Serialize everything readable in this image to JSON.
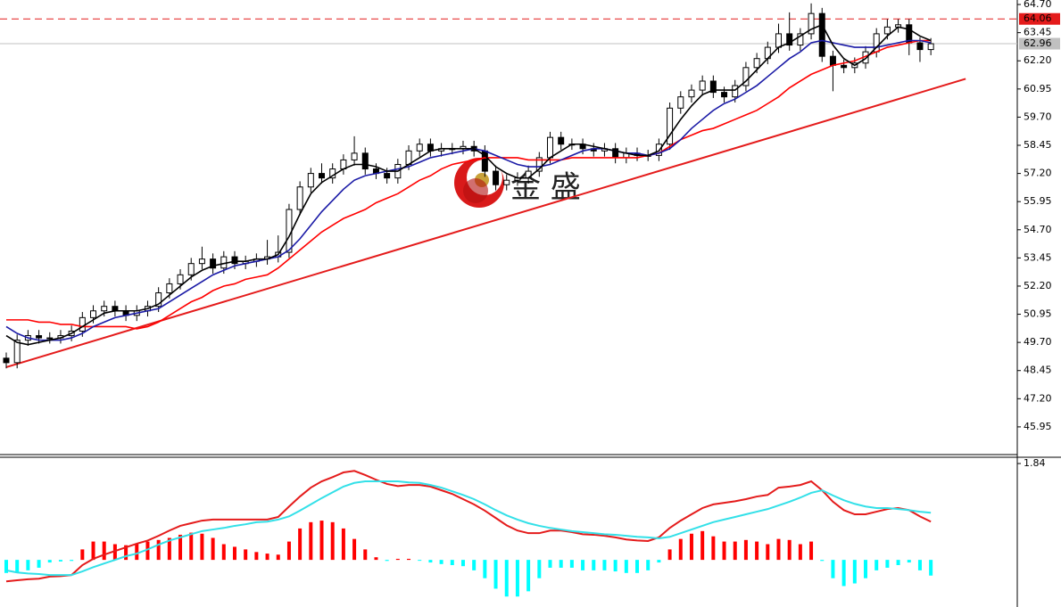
{
  "chart_data": [
    {
      "type": "candlestick",
      "watermark": "金 盛",
      "ylim": [
        44.72,
        64.9
      ],
      "yticks": [
        {
          "value": 64.7,
          "label": "64.70"
        },
        63.45,
        {
          "value": 62.2,
          "label": "62.20"
        },
        60.95,
        {
          "value": 59.7,
          "label": "59.70"
        },
        58.45,
        {
          "value": 57.2,
          "label": "57.20"
        },
        55.95,
        {
          "value": 54.7,
          "label": "54.70"
        },
        53.45,
        {
          "value": 52.2,
          "label": "52.20"
        },
        50.95,
        {
          "value": 49.7,
          "label": "49.70"
        },
        48.45,
        {
          "value": 47.2,
          "label": "47.20"
        },
        45.95
      ],
      "up_color": "#ffffff",
      "down_color": "#000000",
      "open": [
        49.0,
        48.8,
        49.8,
        50.0,
        49.9,
        49.9,
        50.0,
        50.2,
        50.8,
        51.1,
        51.3,
        51.1,
        50.9,
        51.1,
        51.3,
        51.9,
        52.3,
        52.7,
        53.2,
        53.4,
        53.0,
        53.5,
        53.2,
        53.3,
        53.4,
        53.5,
        53.7,
        55.6,
        56.6,
        57.2,
        57.0,
        57.4,
        57.8,
        58.1,
        57.4,
        57.2,
        57.0,
        57.6,
        58.2,
        58.5,
        58.2,
        58.3,
        58.3,
        58.4,
        58.2,
        57.3,
        56.7,
        56.9,
        57.0,
        57.3,
        57.9,
        58.8,
        58.5,
        58.5,
        58.3,
        58.2,
        58.3,
        57.9,
        58.1,
        58.0,
        58.0,
        58.5,
        60.1,
        60.6,
        60.9,
        61.3,
        60.8,
        60.6,
        61.1,
        61.9,
        62.3,
        62.8,
        63.4,
        62.9,
        63.4,
        64.3,
        62.4,
        62.0,
        61.9,
        62.1,
        62.6,
        63.4,
        63.7,
        63.8,
        63.0,
        62.7
      ],
      "high": [
        49.25,
        50.05,
        50.25,
        50.25,
        50.15,
        50.25,
        50.45,
        51.05,
        51.35,
        51.55,
        51.55,
        51.35,
        51.35,
        51.55,
        52.15,
        52.55,
        52.95,
        53.45,
        53.95,
        53.65,
        53.75,
        53.75,
        53.55,
        53.65,
        54.25,
        54.45,
        55.85,
        56.85,
        57.45,
        57.65,
        57.65,
        58.05,
        58.85,
        58.35,
        57.65,
        57.45,
        57.85,
        58.45,
        58.75,
        58.75,
        58.55,
        58.55,
        58.65,
        58.65,
        58.45,
        57.55,
        57.15,
        57.25,
        57.55,
        58.15,
        59.05,
        59.05,
        58.75,
        58.75,
        58.55,
        58.55,
        58.55,
        58.35,
        58.35,
        58.25,
        58.75,
        60.35,
        60.85,
        61.15,
        61.55,
        61.55,
        61.05,
        61.35,
        62.15,
        62.55,
        63.05,
        63.85,
        64.35,
        63.65,
        64.75,
        64.55,
        62.65,
        62.25,
        62.35,
        62.85,
        63.65,
        64.05,
        64.05,
        64.05,
        63.25,
        63.21
      ],
      "low": [
        48.55,
        48.55,
        49.55,
        49.65,
        49.65,
        49.65,
        49.75,
        49.95,
        50.55,
        50.85,
        50.85,
        50.65,
        50.65,
        50.85,
        51.05,
        51.65,
        52.05,
        52.45,
        52.95,
        52.75,
        52.75,
        52.95,
        52.95,
        53.05,
        53.15,
        53.25,
        53.45,
        55.35,
        56.35,
        56.75,
        56.75,
        57.15,
        57.55,
        57.15,
        56.95,
        56.75,
        56.75,
        57.35,
        57.95,
        57.95,
        57.95,
        58.05,
        58.05,
        57.95,
        57.05,
        56.45,
        56.45,
        56.65,
        56.75,
        57.05,
        57.65,
        58.25,
        58.25,
        58.05,
        57.95,
        57.95,
        57.65,
        57.65,
        57.75,
        57.75,
        57.75,
        58.25,
        59.85,
        60.35,
        60.65,
        60.55,
        60.35,
        60.35,
        60.85,
        61.65,
        62.05,
        62.55,
        62.65,
        62.65,
        63.15,
        62.15,
        60.85,
        61.65,
        61.65,
        61.85,
        62.35,
        63.15,
        63.45,
        62.45,
        62.15,
        62.45
      ],
      "close": [
        48.8,
        49.8,
        50.0,
        49.9,
        49.9,
        50.0,
        50.2,
        50.8,
        51.1,
        51.3,
        51.1,
        50.9,
        51.1,
        51.3,
        51.9,
        52.3,
        52.7,
        53.2,
        53.4,
        53.0,
        53.5,
        53.2,
        53.3,
        53.4,
        53.5,
        53.7,
        55.6,
        56.6,
        57.2,
        57.0,
        57.4,
        57.8,
        58.1,
        57.4,
        57.2,
        57.0,
        57.6,
        58.2,
        58.5,
        58.2,
        58.3,
        58.3,
        58.4,
        58.2,
        57.3,
        56.7,
        56.9,
        57.0,
        57.3,
        57.9,
        58.8,
        58.5,
        58.5,
        58.3,
        58.2,
        58.3,
        57.9,
        58.1,
        58.0,
        58.0,
        58.5,
        60.1,
        60.6,
        60.9,
        61.3,
        60.8,
        60.6,
        61.1,
        61.9,
        62.3,
        62.8,
        63.4,
        62.9,
        63.4,
        64.3,
        62.4,
        62.0,
        61.9,
        62.1,
        62.6,
        63.4,
        63.7,
        63.8,
        63.0,
        62.7,
        62.96
      ],
      "series": [
        {
          "color": "#ff0000",
          "values": [
            50.7,
            50.7,
            50.7,
            50.6,
            50.6,
            50.5,
            50.5,
            50.4,
            50.4,
            50.4,
            50.4,
            50.4,
            50.3,
            50.4,
            50.6,
            50.9,
            51.2,
            51.5,
            51.7,
            52.0,
            52.2,
            52.3,
            52.5,
            52.6,
            52.7,
            53.0,
            53.4,
            53.8,
            54.2,
            54.6,
            54.9,
            55.2,
            55.4,
            55.6,
            55.9,
            56.1,
            56.3,
            56.6,
            56.9,
            57.1,
            57.4,
            57.6,
            57.7,
            57.8,
            57.9,
            57.9,
            57.9,
            57.9,
            57.8,
            57.8,
            57.8,
            57.8,
            57.9,
            57.9,
            57.9,
            57.9,
            57.9,
            57.9,
            57.9,
            58.0,
            58.1,
            58.4,
            58.7,
            58.9,
            59.1,
            59.2,
            59.4,
            59.6,
            59.8,
            60.0,
            60.3,
            60.6,
            61.0,
            61.3,
            61.6,
            61.8,
            62.0,
            62.1,
            62.2,
            62.4,
            62.6,
            62.8,
            62.9,
            63.0,
            63.1,
            63.1
          ]
        },
        {
          "color": "#1a1aa6",
          "values": [
            50.4,
            50.1,
            49.9,
            49.8,
            49.8,
            49.8,
            49.9,
            50.1,
            50.4,
            50.6,
            50.8,
            50.9,
            51.0,
            51.1,
            51.2,
            51.5,
            51.8,
            52.1,
            52.4,
            52.7,
            52.9,
            53.1,
            53.2,
            53.3,
            53.4,
            53.5,
            53.8,
            54.3,
            54.9,
            55.5,
            56.0,
            56.5,
            56.9,
            57.1,
            57.2,
            57.3,
            57.4,
            57.5,
            57.7,
            57.9,
            58.0,
            58.1,
            58.2,
            58.3,
            58.2,
            58.0,
            57.8,
            57.6,
            57.5,
            57.5,
            57.6,
            57.8,
            58.0,
            58.2,
            58.3,
            58.3,
            58.2,
            58.1,
            58.1,
            58.0,
            58.1,
            58.3,
            58.7,
            59.2,
            59.6,
            60.0,
            60.3,
            60.5,
            60.8,
            61.1,
            61.5,
            61.9,
            62.3,
            62.6,
            63.0,
            63.1,
            63.0,
            62.9,
            62.8,
            62.8,
            62.8,
            62.9,
            63.0,
            63.1,
            63.1,
            63.0
          ]
        },
        {
          "color": "#000000",
          "values": [
            50.0,
            49.7,
            49.6,
            49.7,
            49.8,
            49.9,
            50.1,
            50.4,
            50.7,
            51.0,
            51.1,
            51.1,
            51.1,
            51.2,
            51.4,
            51.8,
            52.2,
            52.6,
            52.9,
            53.1,
            53.2,
            53.3,
            53.3,
            53.4,
            53.4,
            53.6,
            54.4,
            55.4,
            56.3,
            56.8,
            57.1,
            57.4,
            57.6,
            57.6,
            57.5,
            57.3,
            57.3,
            57.6,
            57.9,
            58.2,
            58.3,
            58.3,
            58.3,
            58.3,
            58.0,
            57.5,
            57.2,
            57.0,
            57.0,
            57.4,
            57.9,
            58.2,
            58.5,
            58.5,
            58.4,
            58.3,
            58.2,
            58.1,
            58.0,
            58.0,
            58.2,
            58.9,
            59.6,
            60.2,
            60.7,
            60.9,
            60.9,
            60.9,
            61.3,
            61.8,
            62.3,
            62.8,
            63.0,
            63.3,
            63.6,
            63.8,
            62.9,
            62.3,
            62.0,
            62.3,
            62.8,
            63.3,
            63.7,
            63.6,
            63.3,
            63.1
          ]
        }
      ],
      "trendline": {
        "color": "#e41b1b",
        "x": [
          0,
          88.2
        ],
        "values": [
          48.6,
          61.4
        ]
      },
      "price_lines": [
        {
          "value": 64.06,
          "color": "#e41b1b",
          "dashed": true
        },
        {
          "value": 62.96,
          "color": "#c0c0c0",
          "dashed": false
        }
      ]
    },
    {
      "type": "macd",
      "ylim": [
        -0.9,
        1.96
      ],
      "yticks": [
        1.84
      ],
      "pos_color": "#ff0000",
      "neg_color": "#00ffff",
      "values": [
        -0.25,
        -0.25,
        -0.2,
        -0.15,
        -0.05,
        -0.03,
        -0.02,
        0.2,
        0.35,
        0.35,
        0.3,
        0.28,
        0.3,
        0.35,
        0.38,
        0.42,
        0.48,
        0.52,
        0.5,
        0.42,
        0.3,
        0.25,
        0.2,
        0.15,
        0.12,
        0.1,
        0.35,
        0.6,
        0.72,
        0.75,
        0.72,
        0.6,
        0.4,
        0.2,
        0.05,
        -0.02,
        0.02,
        0.02,
        -0.01,
        -0.05,
        -0.08,
        -0.1,
        -0.12,
        -0.2,
        -0.35,
        -0.55,
        -0.7,
        -0.7,
        -0.6,
        -0.35,
        -0.15,
        -0.15,
        -0.15,
        -0.2,
        -0.2,
        -0.2,
        -0.22,
        -0.25,
        -0.25,
        -0.2,
        -0.05,
        0.2,
        0.4,
        0.5,
        0.55,
        0.45,
        0.35,
        0.35,
        0.38,
        0.35,
        0.3,
        0.4,
        0.38,
        0.3,
        0.35,
        -0.02,
        -0.35,
        -0.5,
        -0.45,
        -0.35,
        -0.2,
        -0.15,
        -0.1,
        -0.05,
        -0.2,
        -0.3
      ],
      "series": [
        {
          "color": "#e41b1b",
          "values": [
            -0.41,
            -0.39,
            -0.37,
            -0.36,
            -0.32,
            -0.31,
            -0.29,
            -0.1,
            0.02,
            0.1,
            0.17,
            0.24,
            0.31,
            0.37,
            0.46,
            0.56,
            0.65,
            0.7,
            0.75,
            0.77,
            0.77,
            0.77,
            0.77,
            0.77,
            0.77,
            0.82,
            1.02,
            1.21,
            1.38,
            1.5,
            1.58,
            1.67,
            1.7,
            1.62,
            1.53,
            1.45,
            1.41,
            1.43,
            1.43,
            1.4,
            1.33,
            1.26,
            1.16,
            1.06,
            0.94,
            0.8,
            0.66,
            0.56,
            0.51,
            0.51,
            0.56,
            0.56,
            0.53,
            0.49,
            0.48,
            0.46,
            0.43,
            0.39,
            0.37,
            0.36,
            0.43,
            0.61,
            0.75,
            0.87,
            0.99,
            1.06,
            1.09,
            1.12,
            1.16,
            1.21,
            1.24,
            1.38,
            1.4,
            1.43,
            1.5,
            1.33,
            1.11,
            0.95,
            0.87,
            0.87,
            0.92,
            0.97,
            0.99,
            0.95,
            0.83,
            0.73
          ]
        },
        {
          "color": "#33e0e8",
          "values": [
            -0.2,
            -0.24,
            -0.26,
            -0.27,
            -0.29,
            -0.29,
            -0.29,
            -0.22,
            -0.14,
            -0.07,
            0.0,
            0.07,
            0.12,
            0.2,
            0.29,
            0.37,
            0.43,
            0.49,
            0.55,
            0.58,
            0.61,
            0.65,
            0.68,
            0.72,
            0.73,
            0.77,
            0.83,
            0.94,
            1.06,
            1.18,
            1.29,
            1.4,
            1.47,
            1.5,
            1.5,
            1.5,
            1.5,
            1.48,
            1.47,
            1.43,
            1.38,
            1.31,
            1.24,
            1.16,
            1.06,
            0.95,
            0.85,
            0.77,
            0.7,
            0.65,
            0.61,
            0.58,
            0.55,
            0.53,
            0.51,
            0.49,
            0.48,
            0.46,
            0.44,
            0.43,
            0.41,
            0.44,
            0.51,
            0.58,
            0.65,
            0.72,
            0.77,
            0.82,
            0.87,
            0.92,
            0.97,
            1.04,
            1.11,
            1.19,
            1.28,
            1.33,
            1.23,
            1.14,
            1.07,
            1.02,
            0.99,
            0.99,
            0.97,
            0.95,
            0.92,
            0.9
          ]
        }
      ]
    }
  ]
}
